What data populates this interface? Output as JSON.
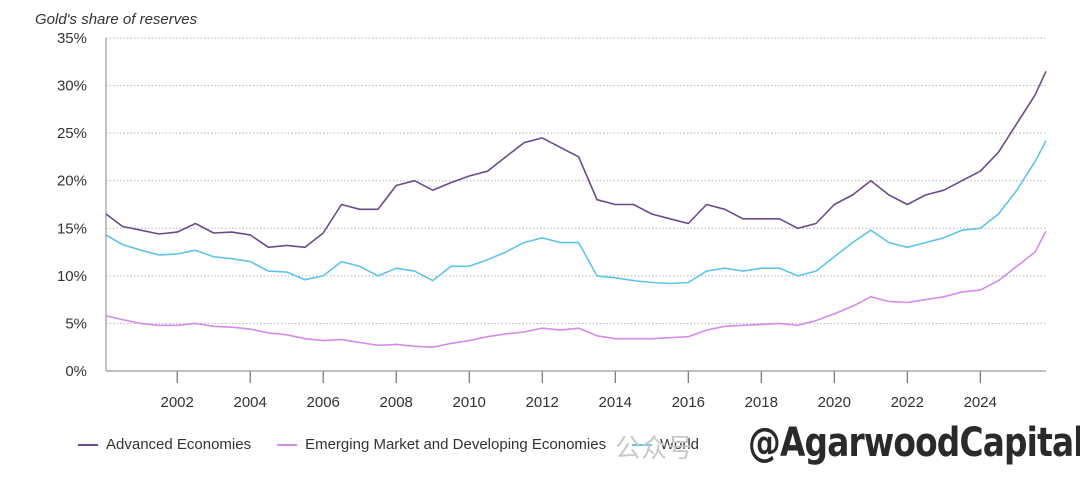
{
  "chart_data": {
    "type": "line",
    "title": "Gold's share of reserves",
    "xlabel": "",
    "ylabel": "",
    "ylim": [
      0,
      35
    ],
    "xlim": [
      2000.05,
      2025.8
    ],
    "yticks": [
      "0%",
      "5%",
      "10%",
      "15%",
      "20%",
      "25%",
      "30%",
      "35%"
    ],
    "xticks": [
      "2002",
      "2004",
      "2006",
      "2008",
      "2010",
      "2012",
      "2014",
      "2016",
      "2018",
      "2020",
      "2022",
      "2024"
    ],
    "grid": "horizontal-dotted",
    "legend_position": "bottom",
    "x": [
      2000.05,
      2000.5,
      2001,
      2001.5,
      2002,
      2002.5,
      2003,
      2003.5,
      2004,
      2004.5,
      2005,
      2005.5,
      2006,
      2006.5,
      2007,
      2007.5,
      2008,
      2008.5,
      2009,
      2009.5,
      2010,
      2010.5,
      2011,
      2011.5,
      2012,
      2012.5,
      2013,
      2013.5,
      2014,
      2014.5,
      2015,
      2015.5,
      2016,
      2016.5,
      2017,
      2017.5,
      2018,
      2018.5,
      2019,
      2019.5,
      2020,
      2020.5,
      2021,
      2021.5,
      2022,
      2022.5,
      2023,
      2023.5,
      2024,
      2024.5,
      2025,
      2025.5,
      2025.8
    ],
    "series": [
      {
        "name": "Advanced Economies",
        "color": "#6b4c8a",
        "values": [
          16.5,
          15.2,
          14.8,
          14.4,
          14.6,
          15.5,
          14.5,
          14.6,
          14.3,
          13.0,
          13.2,
          13.0,
          14.5,
          17.5,
          17.0,
          17.0,
          19.5,
          20.0,
          19.0,
          19.8,
          20.5,
          21.0,
          22.5,
          24.0,
          24.5,
          23.5,
          22.5,
          18.0,
          17.5,
          17.5,
          16.5,
          16.0,
          15.5,
          17.5,
          17.0,
          16.0,
          16.0,
          16.0,
          15.0,
          15.5,
          17.5,
          18.5,
          20.0,
          18.5,
          17.5,
          18.5,
          19.0,
          20.0,
          21.0,
          23.0,
          26.0,
          29.0,
          31.5
        ]
      },
      {
        "name": "Emerging Market and Developing Economies",
        "color": "#d58be8",
        "values": [
          5.8,
          5.4,
          5.0,
          4.8,
          4.8,
          5.0,
          4.7,
          4.6,
          4.4,
          4.0,
          3.8,
          3.4,
          3.2,
          3.3,
          3.0,
          2.7,
          2.8,
          2.6,
          2.5,
          2.9,
          3.2,
          3.6,
          3.9,
          4.1,
          4.5,
          4.3,
          4.5,
          3.7,
          3.4,
          3.4,
          3.4,
          3.5,
          3.6,
          4.3,
          4.7,
          4.8,
          4.9,
          5.0,
          4.8,
          5.3,
          6.0,
          6.8,
          7.8,
          7.3,
          7.2,
          7.5,
          7.8,
          8.3,
          8.5,
          9.5,
          11.0,
          12.5,
          14.7
        ]
      },
      {
        "name": "World",
        "color": "#5fc4e8",
        "values": [
          14.3,
          13.3,
          12.7,
          12.2,
          12.3,
          12.7,
          12.0,
          11.8,
          11.5,
          10.5,
          10.4,
          9.6,
          10.0,
          11.5,
          11.0,
          10.0,
          10.8,
          10.5,
          9.5,
          11.0,
          11.0,
          11.7,
          12.5,
          13.5,
          14.0,
          13.5,
          13.5,
          10.0,
          9.8,
          9.5,
          9.3,
          9.2,
          9.3,
          10.5,
          10.8,
          10.5,
          10.8,
          10.8,
          10.0,
          10.5,
          12.0,
          13.5,
          14.8,
          13.5,
          13.0,
          13.5,
          14.0,
          14.8,
          15.0,
          16.5,
          19.0,
          22.0,
          24.2
        ]
      }
    ]
  },
  "legend": {
    "items": [
      {
        "label": "Advanced Economies",
        "color": "#6b4c8a"
      },
      {
        "label": "Emerging Market and Developing Economies",
        "color": "#d58be8"
      },
      {
        "label": "World",
        "color": "#5fc4e8"
      }
    ]
  },
  "watermark": {
    "handle": "@AgarwoodCapital",
    "faint_text": "公众号"
  }
}
